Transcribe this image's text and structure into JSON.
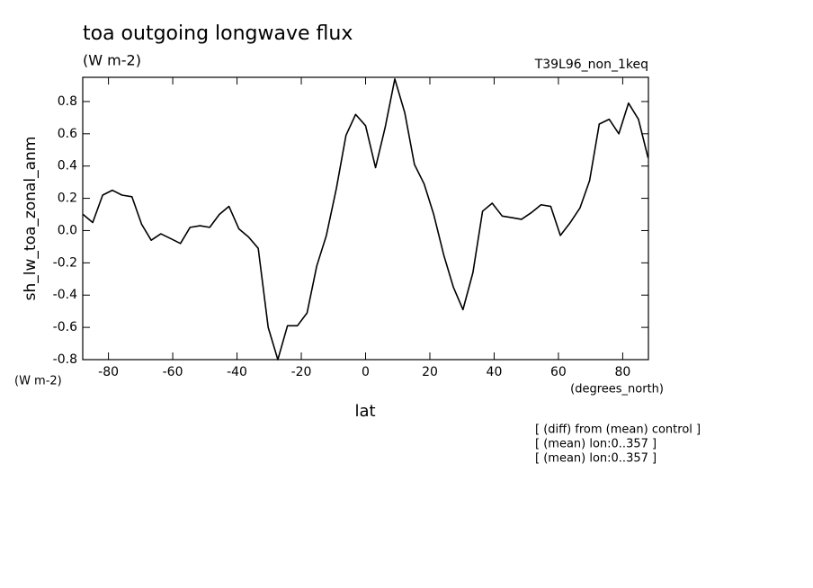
{
  "chart_data": {
    "type": "line",
    "title": "toa outgoing longwave flux",
    "subtitle": "(W m-2)",
    "run_label": "T39L96_non_1keq",
    "ylabel": "sh_lw_toa_zonal_anm",
    "yunits": "(W m-2)",
    "xlabel": "lat",
    "xunits": "(degrees_north)",
    "notes": [
      "[ (diff) from (mean) control ]",
      "[ (mean) lon:0..357 ]",
      "[ (mean) lon:0..357 ]"
    ],
    "color": "#000000",
    "x": [
      -87.9,
      -84.9,
      -81.8,
      -78.8,
      -75.8,
      -72.7,
      -69.7,
      -66.7,
      -63.7,
      -60.6,
      -57.6,
      -54.6,
      -51.5,
      -48.5,
      -45.5,
      -42.5,
      -39.4,
      -36.4,
      -33.4,
      -30.3,
      -27.3,
      -24.3,
      -21.2,
      -18.2,
      -15.2,
      -12.2,
      -9.1,
      -6.1,
      -3.1,
      0,
      3.1,
      6.1,
      9.1,
      12.2,
      15.2,
      18.2,
      21.2,
      24.3,
      27.3,
      30.3,
      33.4,
      36.4,
      39.4,
      42.5,
      45.5,
      48.5,
      51.5,
      54.6,
      57.6,
      60.6,
      63.7,
      66.7,
      69.7,
      72.7,
      75.8,
      78.8,
      81.8,
      84.9,
      87.9
    ],
    "values": [
      0.1,
      0.05,
      0.22,
      0.25,
      0.22,
      0.21,
      0.04,
      -0.06,
      -0.02,
      -0.05,
      -0.08,
      0.02,
      0.03,
      0.02,
      0.1,
      0.15,
      0.01,
      -0.04,
      -0.11,
      -0.6,
      -0.8,
      -0.59,
      -0.59,
      -0.51,
      -0.22,
      -0.03,
      0.26,
      0.59,
      0.72,
      0.65,
      0.39,
      0.64,
      0.94,
      0.73,
      0.41,
      0.29,
      0.1,
      -0.15,
      -0.35,
      -0.49,
      -0.26,
      0.12,
      0.17,
      0.09,
      0.08,
      0.07,
      0.11,
      0.16,
      0.15,
      -0.03,
      0.05,
      0.14,
      0.31,
      0.66,
      0.69,
      0.6,
      0.79,
      0.69,
      0.45
    ],
    "xlim": [
      -88,
      88
    ],
    "ylim": [
      -0.8,
      0.95
    ],
    "xticks": [
      -80,
      -60,
      -40,
      -20,
      0,
      20,
      40,
      60,
      80
    ],
    "yticks": [
      -0.8,
      -0.6,
      -0.4,
      -0.2,
      {
        "value": 0,
        "label": "0.0"
      },
      0.2,
      0.4,
      0.6,
      0.8
    ]
  }
}
